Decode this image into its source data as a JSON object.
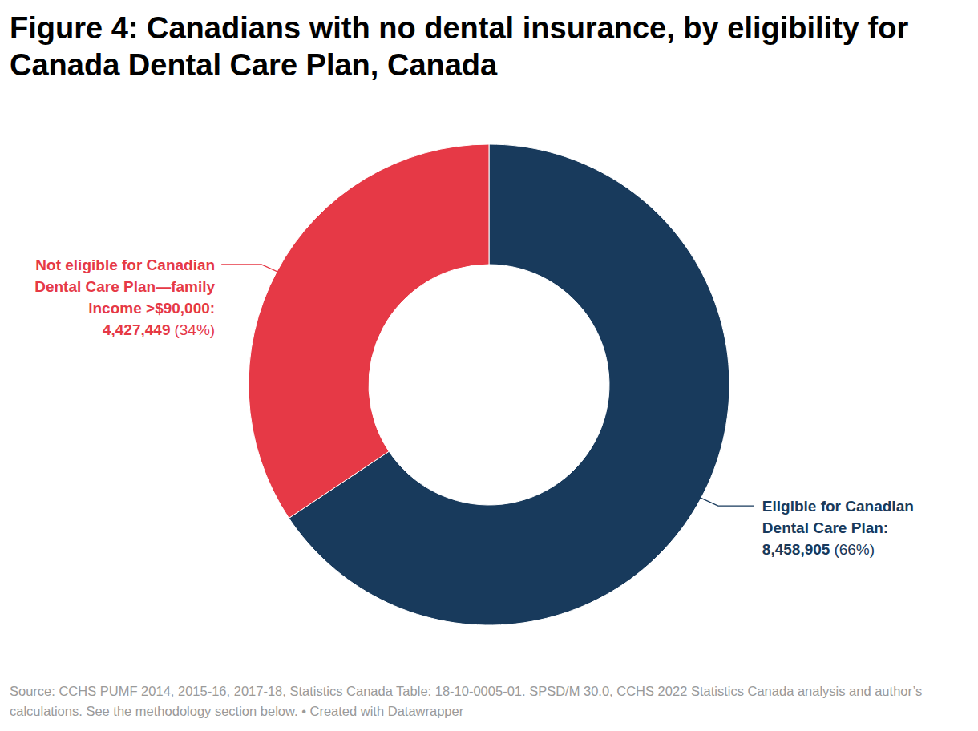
{
  "chart_data": {
    "type": "pie",
    "title": "Figure 4:  Canadians with no dental insurance, by eligibility for Canada Dental Care Plan, Canada",
    "categories": [
      "Eligible for Canadian Dental Care Plan:",
      "Not eligible for Canadian Dental Care Plan—family income >$90,000:"
    ],
    "values": [
      8458905,
      4427449
    ],
    "value_labels": [
      "8,458,905",
      "4,427,449"
    ],
    "percent_labels": [
      "(66%)",
      "(34%)"
    ],
    "colors": [
      "#183a5c",
      "#e63946"
    ],
    "data_labels": true,
    "source": "Source: CCHS PUMF 2014, 2015-16, 2017-18, Statistics Canada Table: 18-10-0005-01. SPSD/M 30.0, CCHS 2022 Statistics Canada analysis and author’s calculations. See the methodology section below. • Created with Datawrapper"
  }
}
